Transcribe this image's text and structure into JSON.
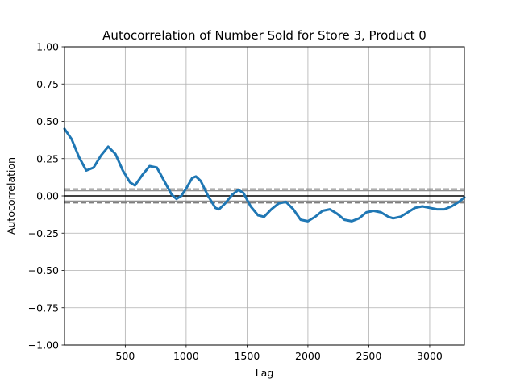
{
  "chart_data": {
    "type": "line",
    "title": "Autocorrelation of Number Sold for Store 3, Product 0",
    "xlabel": "Lag",
    "ylabel": "Autocorrelation",
    "xlim": [
      1,
      3285
    ],
    "ylim": [
      -1.0,
      1.0
    ],
    "xticks": [
      500,
      1000,
      1500,
      2000,
      2500,
      3000
    ],
    "xtick_labels": [
      "500",
      "1000",
      "1500",
      "2000",
      "2500",
      "3000"
    ],
    "yticks": [
      -1.0,
      -0.75,
      -0.5,
      -0.25,
      0.0,
      0.25,
      0.5,
      0.75,
      1.0
    ],
    "ytick_labels": [
      "−1.00",
      "−0.75",
      "−0.50",
      "−0.25",
      "0.00",
      "0.25",
      "0.50",
      "0.75",
      "1.00"
    ],
    "grid": true,
    "legend": "none",
    "reference_lines": {
      "zero": 0.0,
      "confidence_99": 0.045,
      "confidence_95": 0.034
    },
    "series": [
      {
        "color": "#1f77b4",
        "x": [
          1,
          60,
          120,
          180,
          240,
          300,
          360,
          420,
          480,
          540,
          580,
          640,
          700,
          760,
          820,
          880,
          920,
          960,
          1000,
          1050,
          1080,
          1120,
          1180,
          1240,
          1270,
          1320,
          1380,
          1430,
          1470,
          1530,
          1590,
          1640,
          1700,
          1760,
          1820,
          1880,
          1940,
          2000,
          2060,
          2120,
          2180,
          2240,
          2300,
          2360,
          2420,
          2480,
          2540,
          2600,
          2660,
          2700,
          2760,
          2820,
          2880,
          2940,
          3000,
          3060,
          3120,
          3180,
          3240,
          3285
        ],
        "values": [
          0.45,
          0.38,
          0.26,
          0.17,
          0.19,
          0.27,
          0.33,
          0.28,
          0.17,
          0.09,
          0.07,
          0.14,
          0.2,
          0.19,
          0.1,
          0.01,
          -0.02,
          0.0,
          0.05,
          0.12,
          0.13,
          0.1,
          0.0,
          -0.08,
          -0.09,
          -0.05,
          0.01,
          0.04,
          0.02,
          -0.07,
          -0.13,
          -0.14,
          -0.09,
          -0.05,
          -0.04,
          -0.09,
          -0.16,
          -0.17,
          -0.14,
          -0.1,
          -0.09,
          -0.12,
          -0.16,
          -0.17,
          -0.15,
          -0.11,
          -0.1,
          -0.11,
          -0.14,
          -0.15,
          -0.14,
          -0.11,
          -0.08,
          -0.07,
          -0.08,
          -0.09,
          -0.09,
          -0.07,
          -0.04,
          -0.01
        ]
      }
    ]
  }
}
